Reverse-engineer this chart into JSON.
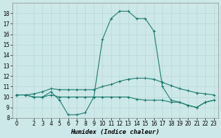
{
  "xlabel": "Humidex (Indice chaleur)",
  "x": [
    0,
    1,
    2,
    3,
    4,
    5,
    6,
    7,
    8,
    9,
    10,
    11,
    12,
    13,
    14,
    15,
    16,
    17,
    18,
    19,
    20,
    21,
    22,
    23
  ],
  "line1": [
    10.2,
    10.2,
    10.0,
    10.0,
    10.5,
    9.7,
    8.3,
    8.3,
    8.5,
    10.0,
    15.5,
    17.5,
    18.2,
    18.2,
    17.5,
    17.5,
    16.3,
    11.0,
    9.7,
    9.5,
    9.2,
    9.0,
    9.5,
    9.7
  ],
  "line2": [
    10.2,
    10.2,
    10.0,
    10.0,
    10.2,
    10.0,
    10.0,
    10.0,
    10.0,
    10.0,
    10.0,
    10.0,
    10.0,
    10.0,
    9.8,
    9.7,
    9.7,
    9.7,
    9.5,
    9.5,
    9.2,
    9.0,
    9.5,
    9.7
  ],
  "line3": [
    10.2,
    10.2,
    10.3,
    10.5,
    10.8,
    10.7,
    10.7,
    10.7,
    10.7,
    10.7,
    11.0,
    11.2,
    11.5,
    11.7,
    11.8,
    11.8,
    11.7,
    11.4,
    11.1,
    10.8,
    10.6,
    10.4,
    10.3,
    10.2
  ],
  "line_color": "#1a7a6e",
  "bg_color": "#cce8e8",
  "grid_color": "#b8d8d8",
  "ylim_min": 8,
  "ylim_max": 19,
  "yticks": [
    8,
    9,
    10,
    11,
    12,
    13,
    14,
    15,
    16,
    17,
    18
  ],
  "xticks": [
    0,
    2,
    3,
    4,
    5,
    6,
    7,
    8,
    9,
    10,
    11,
    12,
    13,
    14,
    15,
    16,
    17,
    18,
    19,
    20,
    21,
    22,
    23
  ]
}
